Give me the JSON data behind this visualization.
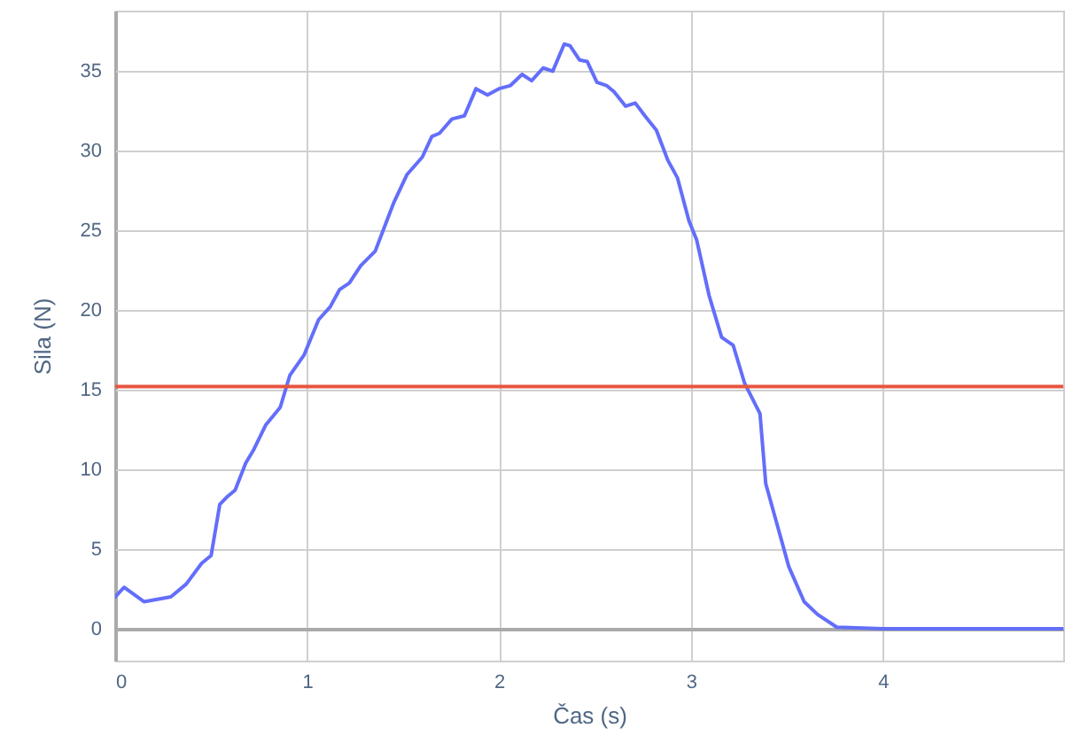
{
  "chart_data": {
    "type": "line",
    "xlabel": "Čas (s)",
    "ylabel": "Sila (N)",
    "xlim": [
      0,
      4.94
    ],
    "xticks": [
      0,
      1,
      2,
      3,
      4
    ],
    "ylim": [
      -2,
      38.8
    ],
    "yticks": [
      0,
      5,
      10,
      15,
      20,
      25,
      30,
      35
    ],
    "grid": true,
    "series": [
      {
        "color": "#636efa",
        "x": [
          0,
          0.046,
          0.15,
          0.29,
          0.37,
          0.45,
          0.5,
          0.545,
          0.585,
          0.625,
          0.68,
          0.72,
          0.785,
          0.86,
          0.91,
          0.985,
          1.06,
          1.12,
          1.17,
          1.22,
          1.28,
          1.355,
          1.45,
          1.52,
          1.6,
          1.65,
          1.69,
          1.755,
          1.82,
          1.88,
          1.94,
          2.0,
          2.06,
          2.12,
          2.17,
          2.23,
          2.28,
          2.34,
          2.37,
          2.42,
          2.46,
          2.51,
          2.56,
          2.6,
          2.66,
          2.71,
          2.76,
          2.82,
          2.88,
          2.93,
          2.99,
          3.03,
          3.095,
          3.16,
          3.22,
          3.28,
          3.36,
          3.39,
          3.45,
          3.51,
          3.59,
          3.66,
          3.76,
          4.0,
          4.5,
          4.94
        ],
        "values": [
          2.0,
          2.6,
          1.7,
          2.0,
          2.8,
          4.1,
          4.6,
          7.8,
          8.3,
          8.7,
          10.4,
          11.2,
          12.8,
          13.9,
          15.9,
          17.2,
          19.4,
          20.2,
          21.3,
          21.7,
          22.8,
          23.7,
          26.7,
          28.5,
          29.6,
          30.9,
          31.1,
          32.0,
          32.2,
          33.9,
          33.5,
          33.9,
          34.1,
          34.8,
          34.4,
          35.2,
          35.0,
          36.7,
          36.6,
          35.7,
          35.6,
          34.3,
          34.1,
          33.7,
          32.8,
          33.0,
          32.2,
          31.3,
          29.4,
          28.3,
          25.6,
          24.4,
          20.9,
          18.3,
          17.8,
          15.4,
          13.5,
          9.1,
          6.5,
          3.9,
          1.7,
          0.9,
          0.1,
          0,
          0,
          0
        ]
      }
    ],
    "ref_lines": [
      {
        "axis": "y",
        "value": 15.2,
        "color": "#e8553f"
      }
    ]
  }
}
